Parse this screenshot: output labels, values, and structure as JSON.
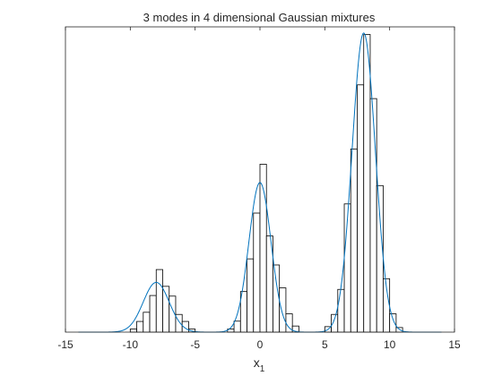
{
  "chart_data": {
    "type": "bar",
    "title": "3 modes in 4 dimensional Gaussian mixtures",
    "xlabel": "x",
    "xlabel_subscript": "1",
    "ylabel": "",
    "xlim": [
      -15,
      15
    ],
    "ylim": [
      0,
      1
    ],
    "xticks": [
      -15,
      -10,
      -5,
      0,
      5,
      10,
      15
    ],
    "grid": false,
    "legend": "none",
    "colors": {
      "bars_edge": "#000000",
      "bars_fill": "#ffffff",
      "curve": "#0072BD",
      "axes": "#262626"
    },
    "histogram": {
      "bin_width": 0.5,
      "bins": [
        {
          "x0": -10.0,
          "h": 0.01
        },
        {
          "x0": -9.5,
          "h": 0.035
        },
        {
          "x0": -9.0,
          "h": 0.065
        },
        {
          "x0": -8.5,
          "h": 0.12
        },
        {
          "x0": -8.0,
          "h": 0.205
        },
        {
          "x0": -7.5,
          "h": 0.15
        },
        {
          "x0": -7.0,
          "h": 0.118
        },
        {
          "x0": -6.5,
          "h": 0.058
        },
        {
          "x0": -6.0,
          "h": 0.035
        },
        {
          "x0": -5.5,
          "h": 0.01
        },
        {
          "x0": -2.5,
          "h": 0.01
        },
        {
          "x0": -2.0,
          "h": 0.036
        },
        {
          "x0": -1.5,
          "h": 0.133
        },
        {
          "x0": -1.0,
          "h": 0.24
        },
        {
          "x0": -0.5,
          "h": 0.39
        },
        {
          "x0": 0.0,
          "h": 0.55
        },
        {
          "x0": 0.5,
          "h": 0.315
        },
        {
          "x0": 1.0,
          "h": 0.22
        },
        {
          "x0": 1.5,
          "h": 0.145
        },
        {
          "x0": 2.0,
          "h": 0.06
        },
        {
          "x0": 2.5,
          "h": 0.02
        },
        {
          "x0": 5.0,
          "h": 0.018
        },
        {
          "x0": 5.5,
          "h": 0.058
        },
        {
          "x0": 6.0,
          "h": 0.14
        },
        {
          "x0": 6.5,
          "h": 0.42
        },
        {
          "x0": 7.0,
          "h": 0.6
        },
        {
          "x0": 7.5,
          "h": 0.81
        },
        {
          "x0": 8.0,
          "h": 0.975
        },
        {
          "x0": 8.5,
          "h": 0.765
        },
        {
          "x0": 9.0,
          "h": 0.48
        },
        {
          "x0": 9.5,
          "h": 0.175
        },
        {
          "x0": 10.0,
          "h": 0.06
        },
        {
          "x0": 10.5,
          "h": 0.015
        }
      ]
    },
    "density_curve": {
      "x_range": [
        -14,
        14
      ],
      "components": [
        {
          "mean": -8,
          "sd": 1.0,
          "peak": 0.163
        },
        {
          "mean": 0,
          "sd": 0.85,
          "peak": 0.49
        },
        {
          "mean": 8,
          "sd": 0.9,
          "peak": 0.98
        }
      ]
    }
  }
}
